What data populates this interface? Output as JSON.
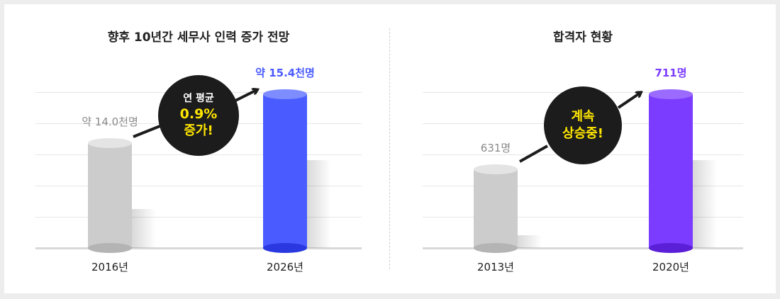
{
  "colors": {
    "gray_bar": "#cccccc",
    "blue_bar": "#4a5cff",
    "purple_bar": "#7b3cff",
    "bubble": "#1c1c1c",
    "highlight": "#ffe600"
  },
  "chart_data": [
    {
      "type": "bar",
      "title": "향후 10년간 세무사 인력 증가 전망",
      "categories": [
        "2016년",
        "2026년"
      ],
      "values": [
        14.0,
        15.4
      ],
      "value_labels": [
        "약 14.0천명",
        "약 15.4천명"
      ],
      "unit": "천명",
      "annotation": {
        "line1": "연 평균",
        "line2": "0.9%",
        "line3": "증가!"
      },
      "grid": true,
      "legend": "none"
    },
    {
      "type": "bar",
      "title": "합격자 현황",
      "categories": [
        "2013년",
        "2020년"
      ],
      "values": [
        631,
        711
      ],
      "value_labels": [
        "631명",
        "711명"
      ],
      "unit": "명",
      "annotation": {
        "line1": "계속",
        "line2": "상승중!"
      },
      "grid": true,
      "legend": "none"
    }
  ]
}
